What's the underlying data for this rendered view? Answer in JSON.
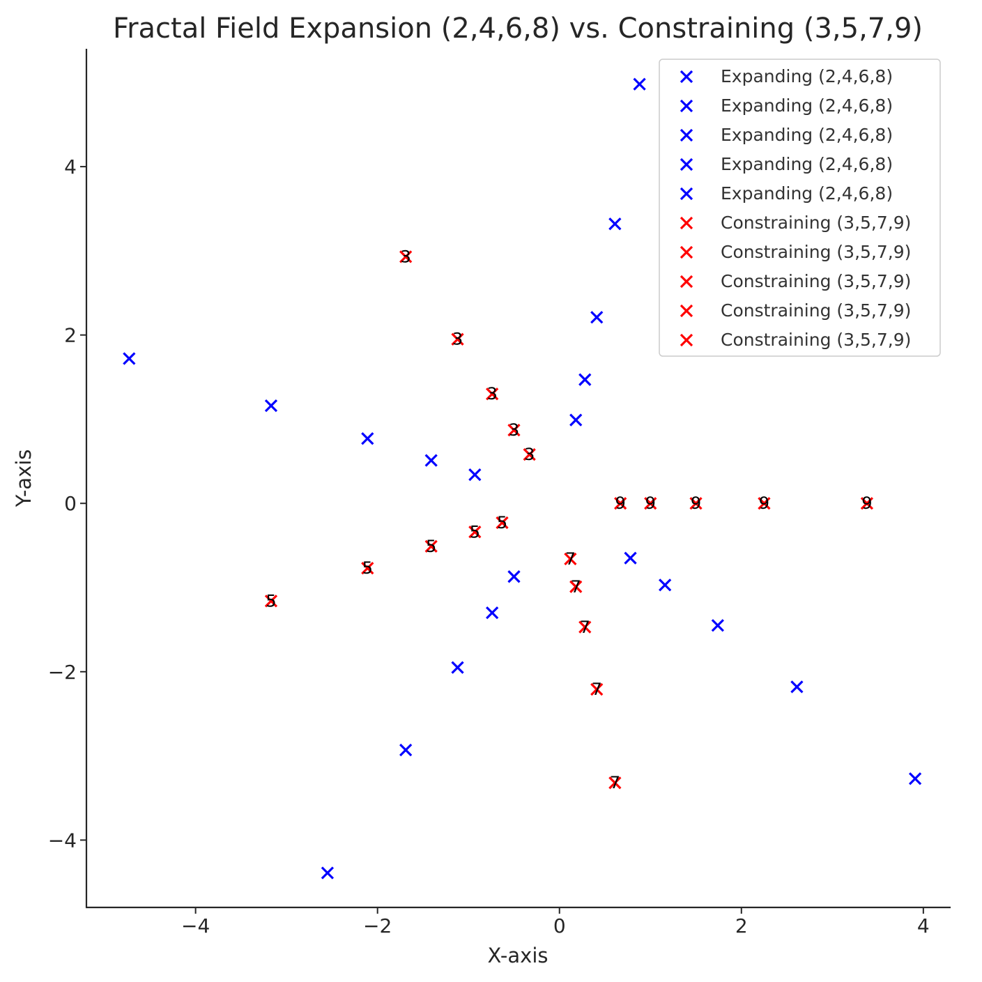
{
  "chart_data": {
    "type": "scatter",
    "title": "Fractal Field Expansion (2,4,6,8) vs. Constraining (3,5,7,9)",
    "xlabel": "X-axis",
    "ylabel": "Y-axis",
    "xlim": [
      -5.2,
      4.3
    ],
    "ylim": [
      -4.8,
      5.4
    ],
    "xticks": [
      -4,
      -2,
      0,
      2,
      4
    ],
    "yticks": [
      -4,
      -2,
      0,
      2,
      4
    ],
    "xtick_labels": [
      "−4",
      "−2",
      "0",
      "2",
      "4"
    ],
    "ytick_labels": [
      "−4",
      "−2",
      "0",
      "2",
      "4"
    ],
    "legend_position": "top-right",
    "marker": "x",
    "colors": {
      "expanding": "#0000ff",
      "constraining": "#ff0000",
      "text": "#262626"
    },
    "series": [
      {
        "name": "Expanding (2,4,6,8)",
        "group": "expanding",
        "points": [
          [
            -4.73,
            1.72
          ],
          [
            -2.55,
            -4.39
          ],
          [
            1.74,
            -1.45
          ],
          [
            0.41,
            2.21
          ]
        ]
      },
      {
        "name": "Expanding (2,4,6,8)",
        "group": "expanding",
        "points": [
          [
            -3.17,
            1.16
          ],
          [
            -1.69,
            -2.93
          ],
          [
            1.16,
            -0.97
          ],
          [
            0.28,
            1.47
          ]
        ]
      },
      {
        "name": "Expanding (2,4,6,8)",
        "group": "expanding",
        "points": [
          [
            -2.11,
            0.77
          ],
          [
            -1.12,
            -1.95
          ],
          [
            0.78,
            -0.65
          ],
          [
            0.18,
            0.99
          ]
        ]
      },
      {
        "name": "Expanding (2,4,6,8)",
        "group": "expanding",
        "points": [
          [
            -1.41,
            0.51
          ],
          [
            -0.74,
            -1.3
          ],
          [
            2.61,
            -2.18
          ],
          [
            0.61,
            3.32
          ]
        ]
      },
      {
        "name": "Expanding (2,4,6,8)",
        "group": "expanding",
        "points": [
          [
            -0.93,
            0.34
          ],
          [
            -0.5,
            -0.87
          ],
          [
            3.91,
            -3.27
          ],
          [
            0.88,
            4.98
          ]
        ]
      },
      {
        "name": "Constraining (3,5,7,9)",
        "group": "constraining",
        "label": "3",
        "points": [
          [
            -1.69,
            2.93
          ],
          [
            -1.12,
            1.95
          ],
          [
            -0.74,
            1.3
          ],
          [
            -0.5,
            0.87
          ],
          [
            -0.33,
            0.58
          ]
        ]
      },
      {
        "name": "Constraining (3,5,7,9)",
        "group": "constraining",
        "label": "5",
        "points": [
          [
            -3.17,
            -1.16
          ],
          [
            -2.11,
            -0.77
          ],
          [
            -1.41,
            -0.51
          ],
          [
            -0.93,
            -0.34
          ],
          [
            -0.63,
            -0.23
          ]
        ]
      },
      {
        "name": "Constraining (3,5,7,9)",
        "group": "constraining",
        "label": "7",
        "points": [
          [
            0.12,
            -0.66
          ],
          [
            0.18,
            -0.99
          ],
          [
            0.28,
            -1.47
          ],
          [
            0.41,
            -2.21
          ],
          [
            0.61,
            -3.32
          ]
        ]
      },
      {
        "name": "Constraining (3,5,7,9)",
        "group": "constraining",
        "label": "9",
        "points": [
          [
            0.67,
            0.0
          ],
          [
            1.0,
            0.0
          ],
          [
            1.5,
            0.0
          ],
          [
            2.25,
            0.0
          ],
          [
            3.38,
            0.0
          ]
        ]
      },
      {
        "name": "Constraining (3,5,7,9)",
        "group": "constraining",
        "points": []
      }
    ]
  }
}
